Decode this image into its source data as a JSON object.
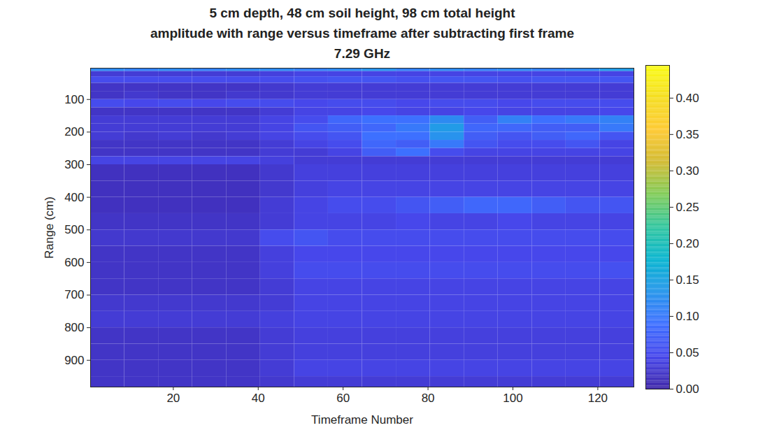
{
  "chart_data": {
    "type": "heatmap",
    "title": [
      "5 cm depth, 48 cm soil height, 98 cm total height",
      "amplitude with range versus timeframe after subtracting first frame",
      "7.29 GHz"
    ],
    "x_label": "Timeframe Number",
    "y_label": "Range (cm)",
    "xlim": [
      0.5,
      128.5
    ],
    "xticks": [
      20,
      40,
      60,
      80,
      100,
      120
    ],
    "ylim": [
      4,
      982
    ],
    "yticks": [
      100,
      200,
      300,
      400,
      500,
      600,
      700,
      800,
      900
    ],
    "grid": false,
    "x_bins": [
      0.5,
      8.5,
      16.5,
      24.5,
      32.5,
      40.5,
      48.5,
      56.5,
      64.5,
      72.5,
      80.5,
      88.5,
      96.5,
      104.5,
      112.5,
      120.5,
      128.5
    ],
    "y_bins": [
      4,
      14,
      30,
      50,
      75,
      100,
      125,
      150,
      175,
      200,
      225,
      250,
      275,
      300,
      350,
      400,
      450,
      500,
      550,
      600,
      650,
      700,
      750,
      800,
      850,
      900,
      950,
      982
    ],
    "z": [
      [
        0.12,
        0.11,
        0.12,
        0.11,
        0.12,
        0.12,
        0.11,
        0.12,
        0.13,
        0.11,
        0.12,
        0.11,
        0.12,
        0.11,
        0.12,
        0.14
      ],
      [
        0.03,
        0.03,
        0.03,
        0.03,
        0.03,
        0.035,
        0.04,
        0.04,
        0.04,
        0.04,
        0.04,
        0.04,
        0.04,
        0.04,
        0.04,
        0.04
      ],
      [
        0.05,
        0.05,
        0.05,
        0.05,
        0.05,
        0.05,
        0.055,
        0.06,
        0.06,
        0.055,
        0.06,
        0.06,
        0.055,
        0.06,
        0.06,
        0.06
      ],
      [
        0.02,
        0.02,
        0.02,
        0.02,
        0.02,
        0.025,
        0.03,
        0.03,
        0.03,
        0.03,
        0.03,
        0.03,
        0.03,
        0.03,
        0.03,
        0.03
      ],
      [
        0.02,
        0.025,
        0.02,
        0.02,
        0.025,
        0.025,
        0.03,
        0.03,
        0.03,
        0.03,
        0.03,
        0.03,
        0.03,
        0.03,
        0.03,
        0.03
      ],
      [
        0.05,
        0.045,
        0.05,
        0.045,
        0.05,
        0.05,
        0.045,
        0.05,
        0.05,
        0.045,
        0.05,
        0.05,
        0.045,
        0.05,
        0.05,
        0.05
      ],
      [
        0.02,
        0.02,
        0.02,
        0.02,
        0.02,
        0.03,
        0.04,
        0.04,
        0.045,
        0.04,
        0.04,
        0.045,
        0.04,
        0.04,
        0.04,
        0.045
      ],
      [
        0.03,
        0.03,
        0.03,
        0.03,
        0.03,
        0.04,
        0.05,
        0.08,
        0.09,
        0.09,
        0.12,
        0.07,
        0.11,
        0.09,
        0.1,
        0.11
      ],
      [
        0.03,
        0.03,
        0.03,
        0.03,
        0.03,
        0.04,
        0.06,
        0.07,
        0.08,
        0.1,
        0.14,
        0.08,
        0.08,
        0.07,
        0.07,
        0.1
      ],
      [
        0.03,
        0.025,
        0.03,
        0.025,
        0.03,
        0.04,
        0.05,
        0.06,
        0.09,
        0.09,
        0.13,
        0.07,
        0.06,
        0.07,
        0.08,
        0.06
      ],
      [
        0.02,
        0.02,
        0.02,
        0.02,
        0.02,
        0.03,
        0.04,
        0.05,
        0.08,
        0.07,
        0.1,
        0.06,
        0.05,
        0.05,
        0.06,
        0.04
      ],
      [
        0.02,
        0.02,
        0.02,
        0.02,
        0.02,
        0.03,
        0.03,
        0.04,
        0.07,
        0.09,
        0.05,
        0.04,
        0.04,
        0.04,
        0.04,
        0.04
      ],
      [
        0.04,
        0.04,
        0.04,
        0.04,
        0.04,
        0.035,
        0.03,
        0.03,
        0.03,
        0.03,
        0.03,
        0.03,
        0.03,
        0.03,
        0.03,
        0.03
      ],
      [
        0.015,
        0.015,
        0.015,
        0.015,
        0.015,
        0.025,
        0.035,
        0.035,
        0.035,
        0.035,
        0.035,
        0.035,
        0.035,
        0.035,
        0.035,
        0.035
      ],
      [
        0.015,
        0.015,
        0.015,
        0.015,
        0.015,
        0.025,
        0.035,
        0.04,
        0.04,
        0.04,
        0.04,
        0.04,
        0.04,
        0.04,
        0.04,
        0.04
      ],
      [
        0.015,
        0.015,
        0.015,
        0.015,
        0.015,
        0.03,
        0.04,
        0.05,
        0.05,
        0.06,
        0.07,
        0.08,
        0.08,
        0.07,
        0.06,
        0.06
      ],
      [
        0.02,
        0.02,
        0.02,
        0.02,
        0.02,
        0.03,
        0.04,
        0.04,
        0.04,
        0.045,
        0.04,
        0.04,
        0.045,
        0.04,
        0.04,
        0.04
      ],
      [
        0.025,
        0.025,
        0.025,
        0.025,
        0.025,
        0.05,
        0.06,
        0.05,
        0.05,
        0.05,
        0.05,
        0.05,
        0.05,
        0.05,
        0.05,
        0.05
      ],
      [
        0.02,
        0.02,
        0.02,
        0.02,
        0.02,
        0.035,
        0.045,
        0.045,
        0.045,
        0.045,
        0.045,
        0.045,
        0.045,
        0.045,
        0.045,
        0.045
      ],
      [
        0.02,
        0.02,
        0.02,
        0.02,
        0.02,
        0.035,
        0.05,
        0.05,
        0.05,
        0.05,
        0.05,
        0.05,
        0.05,
        0.05,
        0.05,
        0.055
      ],
      [
        0.02,
        0.02,
        0.02,
        0.02,
        0.02,
        0.03,
        0.04,
        0.04,
        0.04,
        0.04,
        0.04,
        0.04,
        0.04,
        0.04,
        0.04,
        0.04
      ],
      [
        0.025,
        0.025,
        0.025,
        0.025,
        0.025,
        0.03,
        0.04,
        0.04,
        0.04,
        0.04,
        0.04,
        0.04,
        0.04,
        0.04,
        0.04,
        0.04
      ],
      [
        0.03,
        0.03,
        0.03,
        0.03,
        0.03,
        0.035,
        0.04,
        0.04,
        0.04,
        0.04,
        0.04,
        0.04,
        0.04,
        0.04,
        0.04,
        0.04
      ],
      [
        0.02,
        0.02,
        0.02,
        0.02,
        0.02,
        0.03,
        0.035,
        0.035,
        0.035,
        0.035,
        0.035,
        0.035,
        0.035,
        0.035,
        0.035,
        0.035
      ],
      [
        0.02,
        0.02,
        0.02,
        0.02,
        0.02,
        0.03,
        0.035,
        0.035,
        0.035,
        0.035,
        0.035,
        0.035,
        0.035,
        0.035,
        0.035,
        0.035
      ],
      [
        0.02,
        0.02,
        0.02,
        0.02,
        0.02,
        0.03,
        0.04,
        0.04,
        0.04,
        0.04,
        0.04,
        0.04,
        0.04,
        0.04,
        0.04,
        0.04
      ],
      [
        0.02,
        0.02,
        0.02,
        0.02,
        0.02,
        0.025,
        0.03,
        0.03,
        0.03,
        0.03,
        0.03,
        0.03,
        0.03,
        0.03,
        0.03,
        0.03
      ]
    ],
    "zlim": [
      0,
      0.445
    ],
    "zticks": [
      0,
      0.05,
      0.1,
      0.15,
      0.2,
      0.25,
      0.3,
      0.35,
      0.4
    ]
  }
}
